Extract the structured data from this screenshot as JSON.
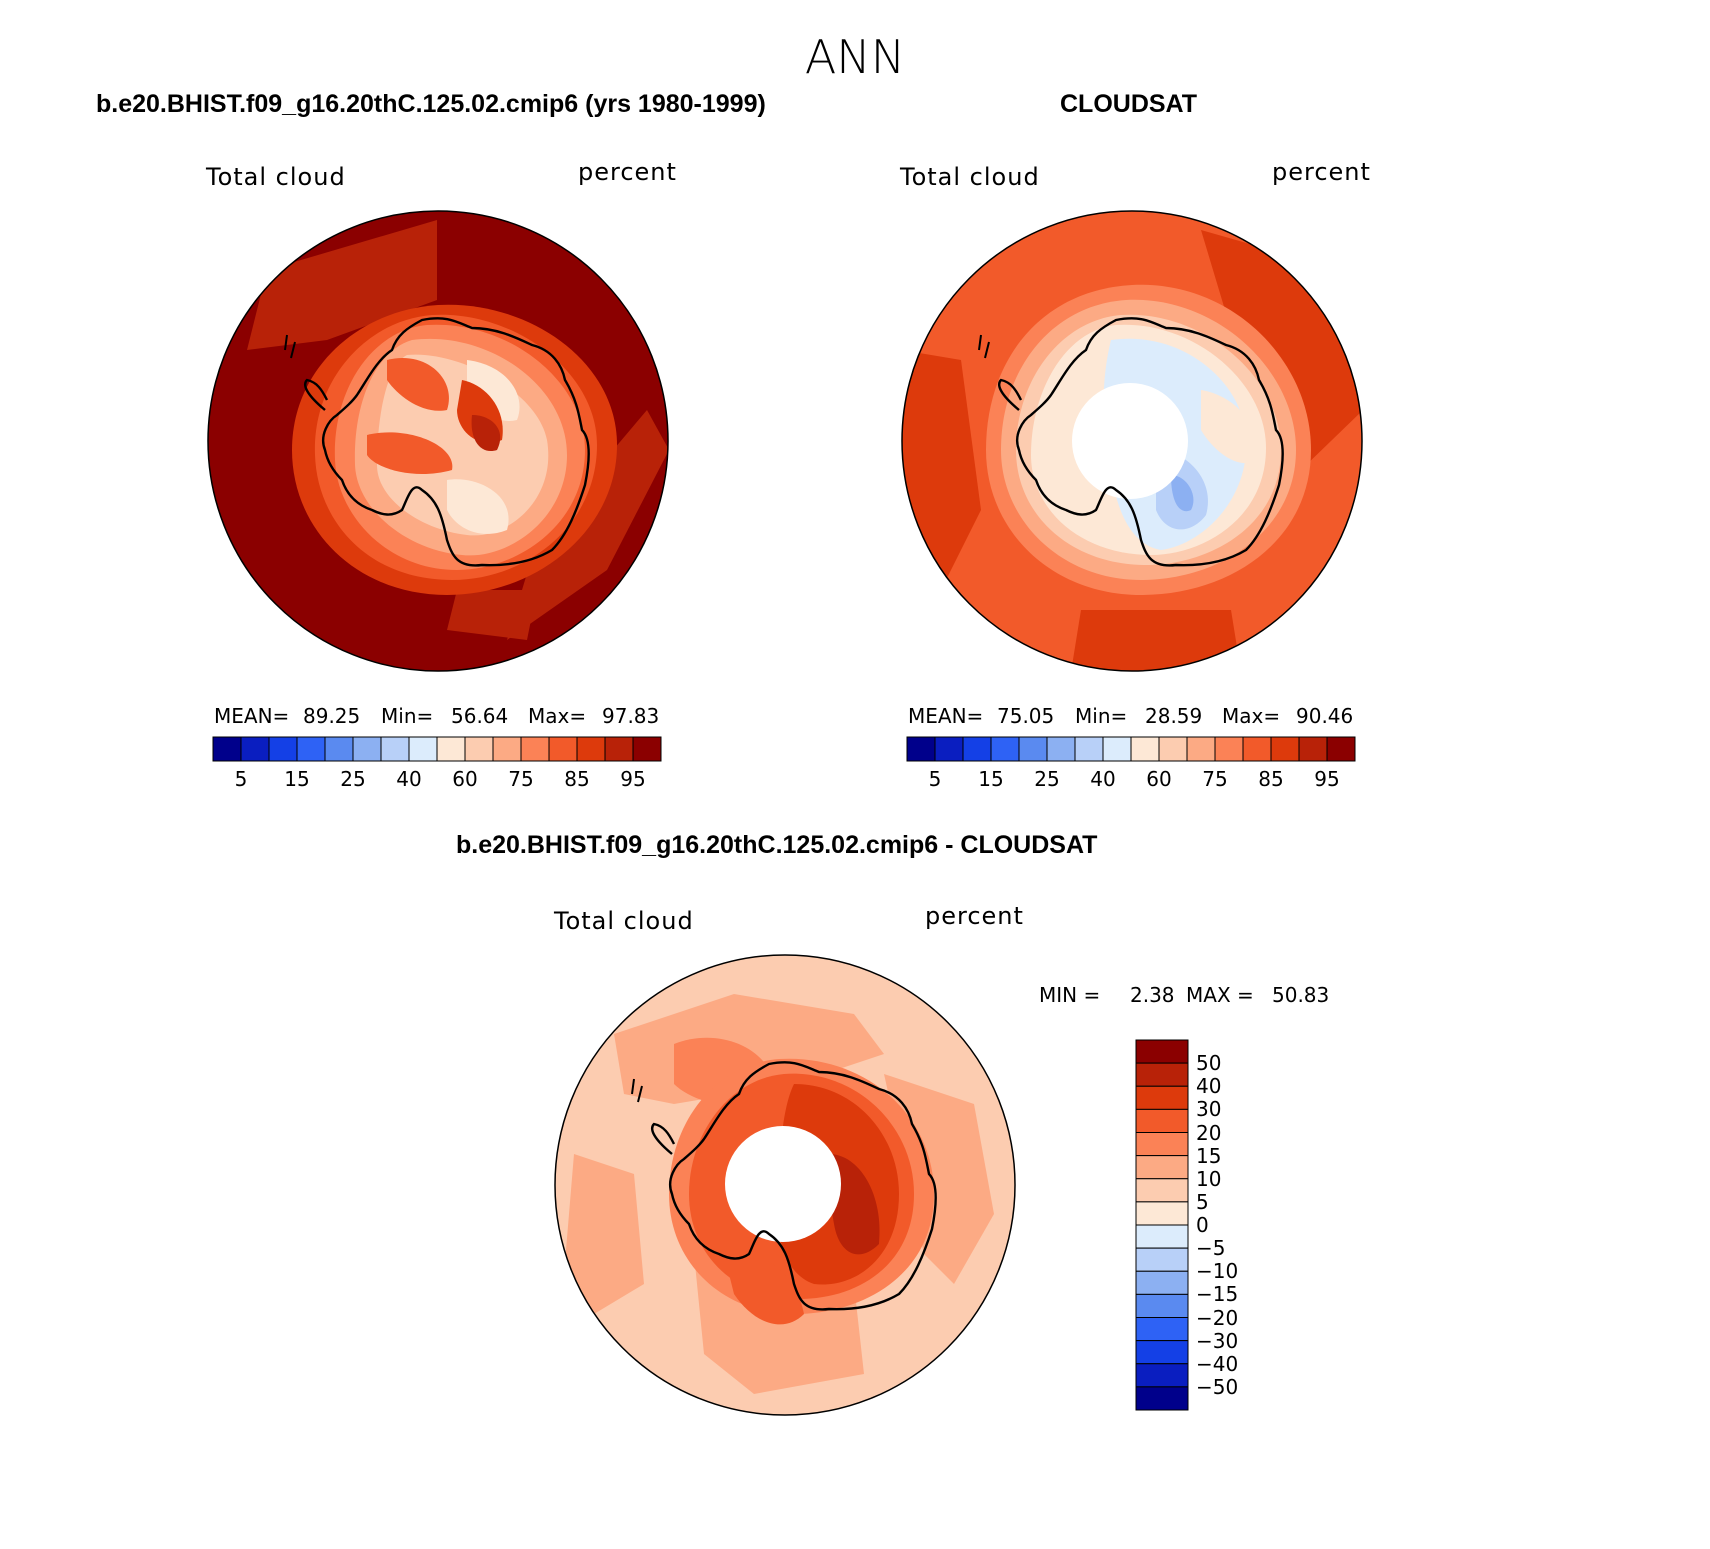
{
  "title": "ANN",
  "panels": [
    {
      "case_title": "b.e20.BHIST.f09_g16.20thC.125.02.cmip6 (yrs 1980-1999)",
      "variable": "Total cloud",
      "units": "percent",
      "stats": {
        "mean_label": "MEAN=",
        "mean": "89.25",
        "min_label": "Min=",
        "min": "56.64",
        "max_label": "Max=",
        "max": "97.83"
      }
    },
    {
      "case_title": "CLOUDSAT",
      "variable": "Total cloud",
      "units": "percent",
      "stats": {
        "mean_label": "MEAN=",
        "mean": "75.05",
        "min_label": "Min=",
        "min": "28.59",
        "max_label": "Max=",
        "max": "90.46"
      }
    },
    {
      "case_title": "b.e20.BHIST.f09_g16.20thC.125.02.cmip6 - CLOUDSAT",
      "variable": "Total cloud",
      "units": "percent",
      "stats": {
        "min_label": "MIN =",
        "min": "2.38",
        "max_label": "MAX =",
        "max": "50.83"
      }
    }
  ],
  "abs_colorbar": {
    "colors": [
      "#00008b",
      "#0a1ec0",
      "#1440e6",
      "#2e62f5",
      "#5a8af0",
      "#8cb0f2",
      "#b8d0f8",
      "#dcecfc",
      "#fde8d6",
      "#fcccb0",
      "#fcaa84",
      "#fb8256",
      "#f25a2a",
      "#dd3a0c",
      "#b82208",
      "#8b0000"
    ],
    "tick_labels": [
      "5",
      "15",
      "25",
      "40",
      "60",
      "75",
      "85",
      "95"
    ]
  },
  "diff_colorbar": {
    "colors": [
      "#8b0000",
      "#b82208",
      "#dd3a0c",
      "#f25a2a",
      "#fb8256",
      "#fcaa84",
      "#fcccb0",
      "#fde8d6",
      "#dcecfc",
      "#b8d0f8",
      "#8cb0f2",
      "#5a8af0",
      "#2e62f5",
      "#1440e6",
      "#0a1ec0",
      "#00008b"
    ],
    "tick_labels": [
      "50",
      "40",
      "30",
      "20",
      "15",
      "10",
      "5",
      "0",
      "−5",
      "−10",
      "−15",
      "−20",
      "−30",
      "−40",
      "−50"
    ]
  }
}
